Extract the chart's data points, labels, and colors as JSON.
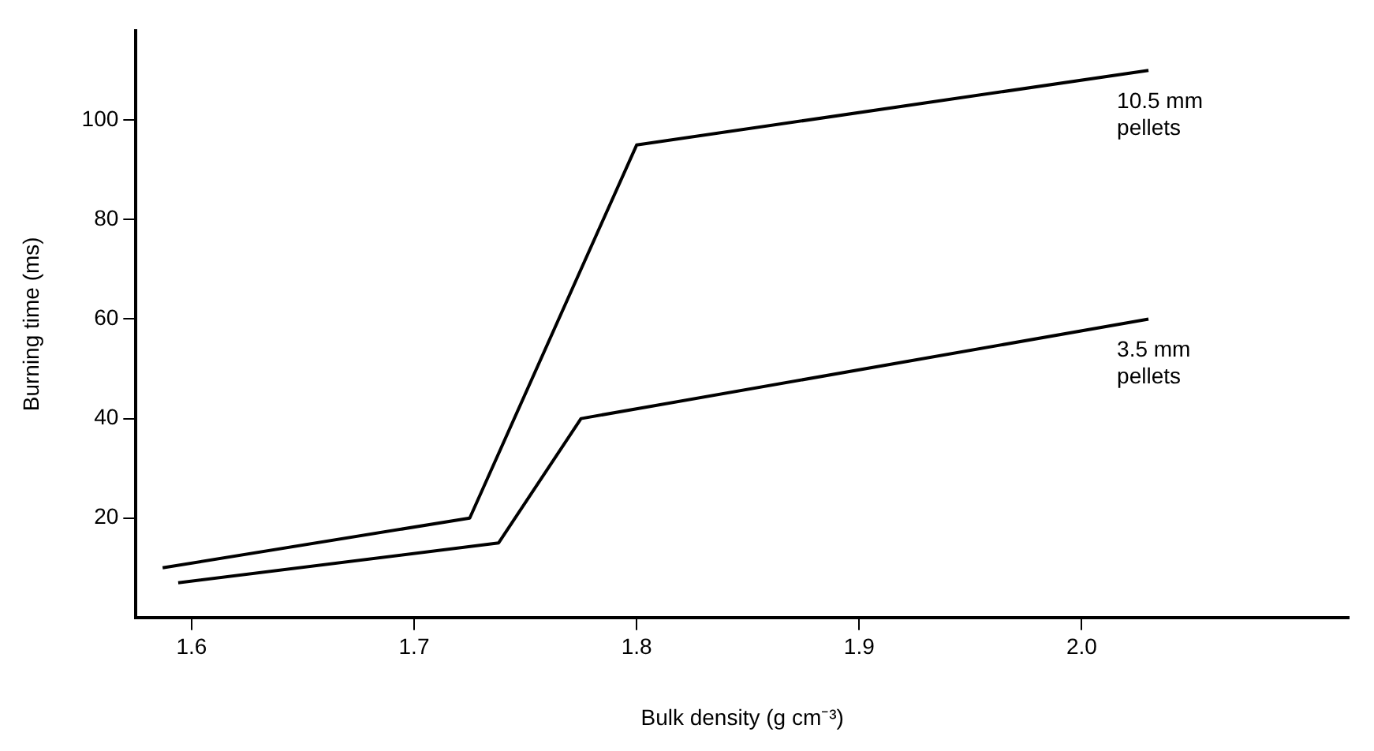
{
  "chart_data": {
    "type": "line",
    "xlabel": "Bulk density (g cm⁻³)",
    "ylabel": "Burning time (ms)",
    "xlim": [
      1.575,
      2.12
    ],
    "xticks": [
      1.6,
      1.7,
      1.8,
      1.9,
      {
        "value": 2.0,
        "label": "2.0"
      }
    ],
    "ylim": [
      0,
      118
    ],
    "yticks": [
      20,
      40,
      60,
      80,
      100
    ],
    "grid": false,
    "legend": false,
    "marker": "none",
    "line_style": "solid",
    "series": [
      {
        "name": "10.5 mm pellets",
        "color": "#000000",
        "x": [
          1.587,
          1.725,
          1.8,
          2.03
        ],
        "values": [
          10,
          20,
          95,
          110
        ]
      },
      {
        "name": "3.5 mm pellets",
        "color": "#000000",
        "x": [
          1.594,
          1.738,
          1.775,
          2.03
        ],
        "values": [
          7,
          15,
          40,
          60
        ]
      }
    ]
  }
}
